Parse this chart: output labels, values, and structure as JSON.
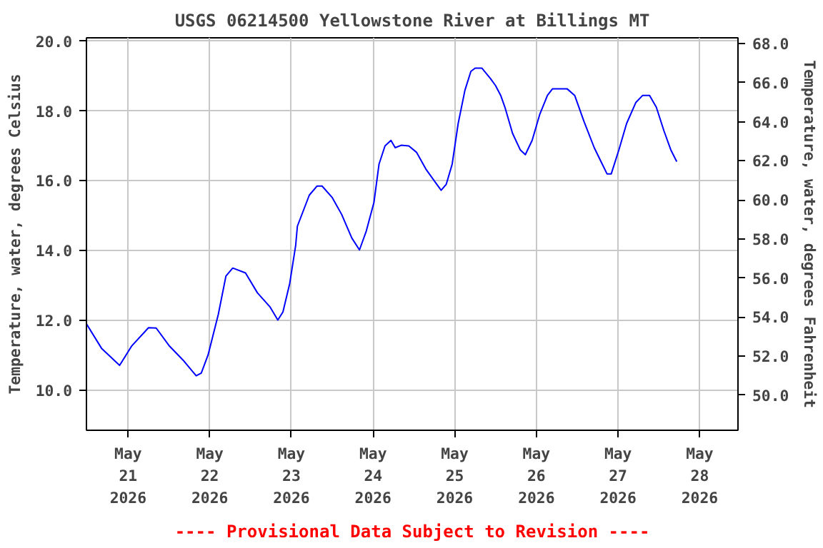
{
  "chart_data": {
    "type": "line",
    "title": "USGS 06214500 Yellowstone River at Billings MT",
    "ylabel": "Temperature, water, degrees Celsius",
    "y2label": "Temperature, water, degrees Fahrenheit",
    "annotations": [
      "---- Provisional Data Subject to Revision ----"
    ],
    "x": [
      "2026-05-20T11:45",
      "2026-05-20T16:15",
      "2026-05-20T21:30",
      "2026-05-21T01:00",
      "2026-05-21T06:00",
      "2026-05-21T08:15",
      "2026-05-21T12:00",
      "2026-05-21T16:15",
      "2026-05-21T20:00",
      "2026-05-21T21:30",
      "2026-05-21T23:30",
      "2026-05-22T02:30",
      "2026-05-22T04:45",
      "2026-05-22T06:45",
      "2026-05-22T10:30",
      "2026-05-22T14:00",
      "2026-05-22T17:45",
      "2026-05-22T20:00",
      "2026-05-22T21:30",
      "2026-05-22T23:30",
      "2026-05-23T01:15",
      "2026-05-23T01:45",
      "2026-05-23T05:15",
      "2026-05-23T07:30",
      "2026-05-23T09:00",
      "2026-05-23T12:00",
      "2026-05-23T14:45",
      "2026-05-23T17:45",
      "2026-05-23T20:00",
      "2026-05-23T22:00",
      "2026-05-24T00:15",
      "2026-05-24T01:45",
      "2026-05-24T03:30",
      "2026-05-24T05:15",
      "2026-05-24T06:30",
      "2026-05-24T08:15",
      "2026-05-24T10:30",
      "2026-05-24T12:45",
      "2026-05-24T15:30",
      "2026-05-24T18:30",
      "2026-05-24T20:00",
      "2026-05-24T21:30",
      "2026-05-24T23:15",
      "2026-05-25T01:00",
      "2026-05-25T03:00",
      "2026-05-25T04:45",
      "2026-05-25T06:00",
      "2026-05-25T08:00",
      "2026-05-25T10:30",
      "2026-05-25T12:00",
      "2026-05-25T13:30",
      "2026-05-25T14:45",
      "2026-05-25T17:00",
      "2026-05-25T19:15",
      "2026-05-25T20:45",
      "2026-05-25T22:45",
      "2026-05-26T01:00",
      "2026-05-26T03:15",
      "2026-05-26T04:45",
      "2026-05-26T09:00",
      "2026-05-26T11:15",
      "2026-05-26T14:00",
      "2026-05-26T17:00",
      "2026-05-26T19:15",
      "2026-05-26T20:45",
      "2026-05-26T22:00",
      "2026-05-27T00:15",
      "2026-05-27T02:30",
      "2026-05-27T05:15",
      "2026-05-27T07:15",
      "2026-05-27T09:15",
      "2026-05-27T11:15",
      "2026-05-27T13:30",
      "2026-05-27T15:30",
      "2026-05-27T17:15"
    ],
    "series": [
      {
        "color": "#0000ff",
        "values": [
          11.9,
          11.19,
          10.71,
          11.26,
          11.79,
          11.78,
          11.28,
          10.85,
          10.41,
          10.49,
          11.01,
          12.17,
          13.27,
          13.5,
          13.36,
          12.79,
          12.38,
          12.01,
          12.24,
          13.06,
          14.15,
          14.7,
          15.59,
          15.85,
          15.85,
          15.52,
          15.04,
          14.36,
          14.02,
          14.56,
          15.38,
          16.48,
          17.0,
          17.16,
          16.95,
          17.02,
          17.0,
          16.82,
          16.34,
          15.93,
          15.73,
          15.9,
          16.48,
          17.64,
          18.6,
          19.14,
          19.23,
          19.23,
          18.93,
          18.73,
          18.45,
          18.11,
          17.36,
          16.89,
          16.75,
          17.16,
          17.91,
          18.45,
          18.64,
          18.64,
          18.45,
          17.7,
          16.95,
          16.5,
          16.2,
          16.2,
          16.89,
          17.64,
          18.25,
          18.45,
          18.45,
          18.11,
          17.43,
          16.89,
          16.55
        ]
      }
    ],
    "xlim": [
      "2026-05-20T11:45",
      "2026-05-28T11:15"
    ],
    "xticks": [
      {
        "value": "2026-05-21",
        "label": "May\n21\n2026"
      },
      {
        "value": "2026-05-22",
        "label": "May\n22\n2026"
      },
      {
        "value": "2026-05-23",
        "label": "May\n23\n2026"
      },
      {
        "value": "2026-05-24",
        "label": "May\n24\n2026"
      },
      {
        "value": "2026-05-25",
        "label": "May\n25\n2026"
      },
      {
        "value": "2026-05-26",
        "label": "May\n26\n2026"
      },
      {
        "value": "2026-05-27",
        "label": "May\n27\n2026"
      },
      {
        "value": "2026-05-28",
        "label": "May\n28\n2026"
      }
    ],
    "ylim": [
      8.85,
      20.1
    ],
    "yticks": [
      {
        "value": 10,
        "label": "10.0"
      },
      {
        "value": 12,
        "label": "12.0"
      },
      {
        "value": 14,
        "label": "14.0"
      },
      {
        "value": 16,
        "label": "16.0"
      },
      {
        "value": 18,
        "label": "18.0"
      },
      {
        "value": 20,
        "label": "20.0"
      }
    ],
    "y2lim": [
      48.2,
      68.3
    ],
    "y2ticks": [
      {
        "value": 50,
        "label": "50.0"
      },
      {
        "value": 52,
        "label": "52.0"
      },
      {
        "value": 54,
        "label": "54.0"
      },
      {
        "value": 56,
        "label": "56.0"
      },
      {
        "value": 58,
        "label": "58.0"
      },
      {
        "value": 60,
        "label": "60.0"
      },
      {
        "value": 62,
        "label": "62.0"
      },
      {
        "value": 64,
        "label": "64.0"
      },
      {
        "value": 66,
        "label": "66.0"
      },
      {
        "value": 68,
        "label": "68.0"
      }
    ],
    "grid": true,
    "marker": "none",
    "line_style": "solid"
  }
}
